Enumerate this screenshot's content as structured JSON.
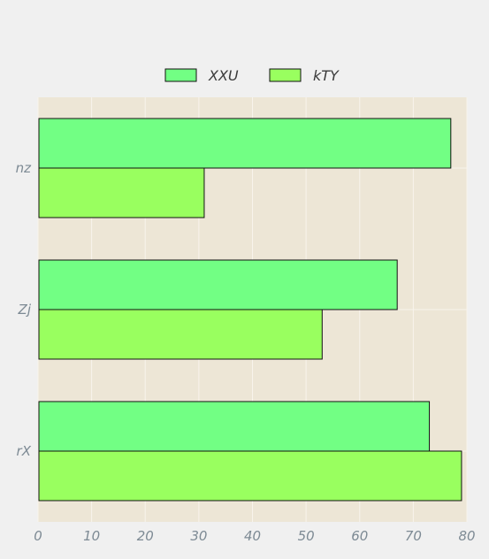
{
  "chart_data": {
    "type": "bar",
    "orientation": "horizontal",
    "categories": [
      "nz",
      "Zj",
      "rX"
    ],
    "series": [
      {
        "name": "XXU",
        "values": [
          77,
          67,
          73
        ],
        "color": "#72ff84"
      },
      {
        "name": "kTY",
        "values": [
          31,
          53,
          79
        ],
        "color": "#99ff5f"
      }
    ],
    "x_ticks": [
      "0",
      "10",
      "20",
      "30",
      "40",
      "50",
      "60",
      "70",
      "80"
    ],
    "xlim": [
      0,
      80
    ],
    "grid": true,
    "legend_position": "top-center",
    "plot_background": "#ede6d6",
    "grid_color": "#f8f4ec"
  }
}
